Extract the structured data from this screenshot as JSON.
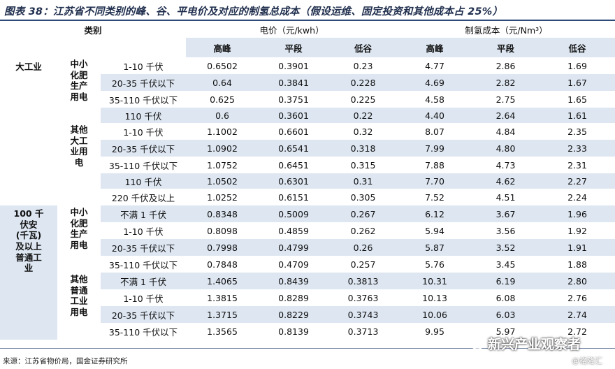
{
  "title": "图表 38：江苏省不同类别的峰、谷、平电价及对应的制氢总成本（假设运维、固定投资和其他成本占 25%）",
  "header": {
    "category": "类别",
    "price_group": "电价（元/kwh）",
    "cost_group": "制氢成本（元/Nm³）",
    "price_cols": [
      "高峰",
      "平段",
      "低谷"
    ],
    "cost_cols": [
      "高峰",
      "平段",
      "低谷"
    ]
  },
  "rows": [
    {
      "voltage": "1-10 千伏",
      "p": [
        "0.6502",
        "0.3901",
        "0.23"
      ],
      "c": [
        "4.77",
        "2.86",
        "1.69"
      ]
    },
    {
      "voltage": "20-35 千伏以下",
      "p": [
        "0.64",
        "0.3841",
        "0.228"
      ],
      "c": [
        "4.69",
        "2.82",
        "1.67"
      ]
    },
    {
      "voltage": "35-110 千伏以下",
      "p": [
        "0.625",
        "0.3751",
        "0.225"
      ],
      "c": [
        "4.58",
        "2.75",
        "1.65"
      ]
    },
    {
      "voltage": "110 千伏",
      "p": [
        "0.6",
        "0.3601",
        "0.22"
      ],
      "c": [
        "4.40",
        "2.64",
        "1.61"
      ]
    },
    {
      "voltage": "1-10 千伏",
      "p": [
        "1.1002",
        "0.6601",
        "0.32"
      ],
      "c": [
        "8.07",
        "4.84",
        "2.35"
      ]
    },
    {
      "voltage": "20-35 千伏以下",
      "p": [
        "1.0902",
        "0.6541",
        "0.318"
      ],
      "c": [
        "7.99",
        "4.80",
        "2.33"
      ]
    },
    {
      "voltage": "35-110 千伏以下",
      "p": [
        "1.0752",
        "0.6451",
        "0.315"
      ],
      "c": [
        "7.88",
        "4.73",
        "2.31"
      ]
    },
    {
      "voltage": "110 千伏",
      "p": [
        "1.0502",
        "0.6301",
        "0.31"
      ],
      "c": [
        "7.70",
        "4.62",
        "2.27"
      ]
    },
    {
      "voltage": "220 千伏及以上",
      "p": [
        "1.0252",
        "0.6151",
        "0.305"
      ],
      "c": [
        "7.52",
        "4.51",
        "2.24"
      ]
    },
    {
      "voltage": "不满 1 千伏",
      "p": [
        "0.8348",
        "0.5009",
        "0.267"
      ],
      "c": [
        "6.12",
        "3.67",
        "1.96"
      ]
    },
    {
      "voltage": "1-10 千伏",
      "p": [
        "0.8098",
        "0.4859",
        "0.262"
      ],
      "c": [
        "5.94",
        "3.56",
        "1.92"
      ]
    },
    {
      "voltage": "20-35 千伏以下",
      "p": [
        "0.7998",
        "0.4799",
        "0.26"
      ],
      "c": [
        "5.87",
        "3.52",
        "1.91"
      ]
    },
    {
      "voltage": "35-110 千伏以下",
      "p": [
        "0.7848",
        "0.4709",
        "0.257"
      ],
      "c": [
        "5.76",
        "3.45",
        "1.88"
      ]
    },
    {
      "voltage": "不满 1 千伏",
      "p": [
        "1.4065",
        "0.8439",
        "0.3813"
      ],
      "c": [
        "10.31",
        "6.19",
        "2.80"
      ]
    },
    {
      "voltage": "1-10 千伏",
      "p": [
        "1.3815",
        "0.8289",
        "0.3763"
      ],
      "c": [
        "10.13",
        "6.08",
        "2.76"
      ]
    },
    {
      "voltage": "20-35 千伏以下",
      "p": [
        "1.3715",
        "0.8229",
        "0.3743"
      ],
      "c": [
        "10.06",
        "6.03",
        "2.74"
      ]
    },
    {
      "voltage": "35-110 千伏以下",
      "p": [
        "1.3565",
        "0.8139",
        "0.3713"
      ],
      "c": [
        "9.95",
        "5.97",
        "2.72"
      ]
    }
  ],
  "sectors": {
    "large_industry": "大工业",
    "general_industry_lines": [
      "100 千",
      "伏安",
      "(千瓦)",
      "及以上",
      "普通工",
      "业"
    ]
  },
  "users": {
    "fertilizer_1_lines": [
      "中小",
      "化肥",
      "生产",
      "用电"
    ],
    "other_large_lines": [
      "其他",
      "大工",
      "业用",
      "电"
    ],
    "fertilizer_2_lines": [
      "中小",
      "化肥",
      "生产",
      "用电"
    ],
    "other_general_lines": [
      "其他",
      "普通",
      "工业",
      "用电"
    ]
  },
  "source": "来源：江苏省物价局，国金证券研究所",
  "watermark": "新兴产业观察者",
  "watermark_icon": "wechat-bubble-icon",
  "sub_watermark": "@格隆汇"
}
